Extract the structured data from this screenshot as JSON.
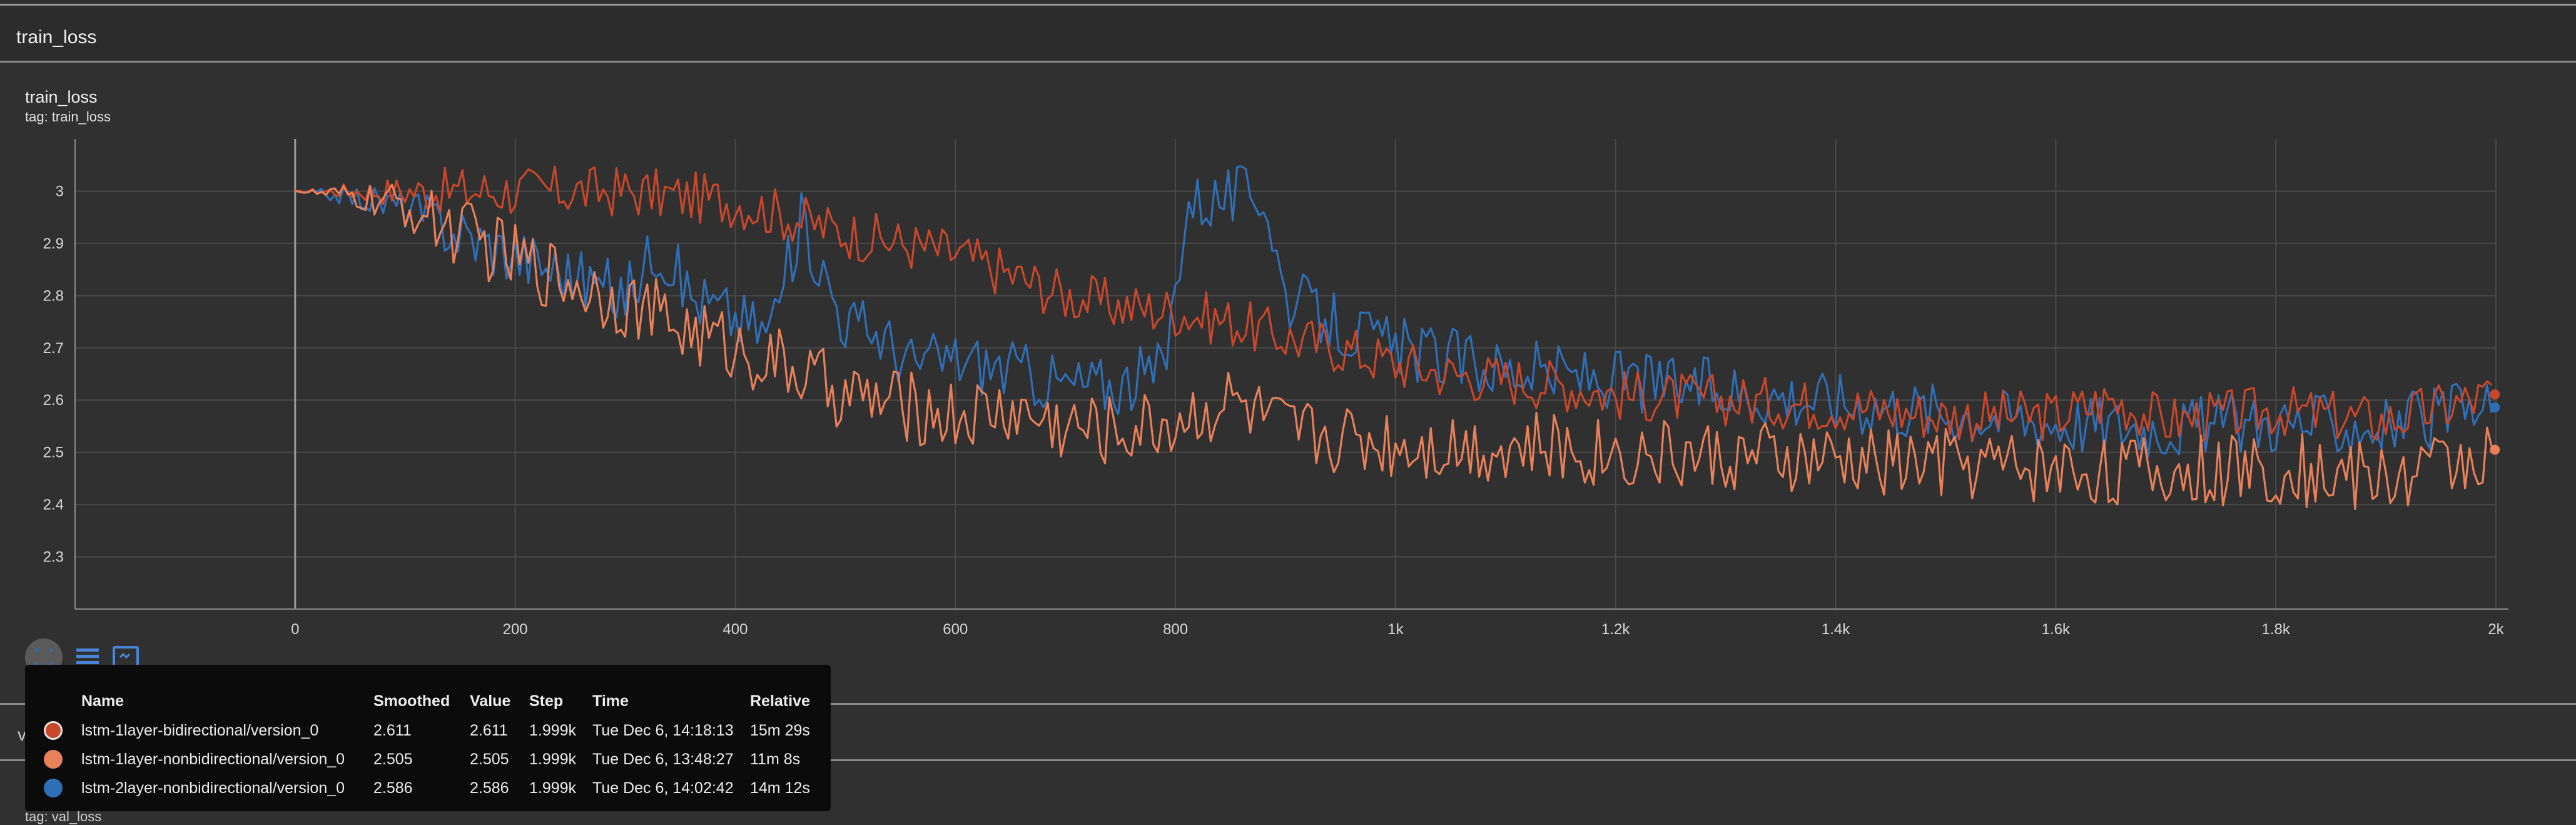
{
  "section": {
    "title": "train_loss"
  },
  "card": {
    "title": "train_loss",
    "tag": "tag: train_loss"
  },
  "tooltip": {
    "headers": {
      "name": "Name",
      "smoothed": "Smoothed",
      "value": "Value",
      "step": "Step",
      "time": "Time",
      "relative": "Relative"
    },
    "rows": [
      {
        "name": "lstm-1layer-bidirectional/version_0",
        "smoothed": "2.611",
        "value": "2.611",
        "step": "1.999k",
        "time": "Tue Dec 6, 14:18:13",
        "relative": "15m 29s",
        "color": "#c9472b"
      },
      {
        "name": "lstm-1layer-nonbidirectional/version_0",
        "smoothed": "2.505",
        "value": "2.505",
        "step": "1.999k",
        "time": "Tue Dec 6, 13:48:27",
        "relative": "11m 8s",
        "color": "#e8805a"
      },
      {
        "name": "lstm-2layer-nonbidirectional/version_0",
        "smoothed": "2.586",
        "value": "2.586",
        "step": "1.999k",
        "time": "Tue Dec 6, 14:02:42",
        "relative": "14m 12s",
        "color": "#2f6fb8"
      }
    ]
  },
  "val_section": {
    "title": "val_loss",
    "subtitle": "val_loss",
    "tag": "tag: val_loss"
  },
  "chart_data": {
    "type": "line",
    "title": "train_loss",
    "xlim": [
      -200,
      2000
    ],
    "ylim": [
      2.2,
      3.1
    ],
    "x_ticks": [
      0,
      200,
      400,
      600,
      800,
      1000,
      1200,
      1400,
      1600,
      1800,
      2000
    ],
    "x_tick_labels": [
      "0",
      "200",
      "400",
      "600",
      "800",
      "1k",
      "1.2k",
      "1.4k",
      "1.6k",
      "1.8k",
      "2k"
    ],
    "y_ticks": [
      2.3,
      2.4,
      2.5,
      2.6,
      2.7,
      2.8,
      2.9,
      3
    ],
    "y_tick_labels": [
      "2.3",
      "2.4",
      "2.5",
      "2.6",
      "2.7",
      "2.8",
      "2.9",
      "3"
    ],
    "grid": true,
    "series": [
      {
        "name": "lstm-1layer-bidirectional/version_0",
        "color": "#c9472b",
        "x": [
          0,
          100,
          200,
          300,
          350,
          400,
          450,
          500,
          550,
          600,
          650,
          700,
          750,
          800,
          850,
          900,
          950,
          1000,
          1050,
          1100,
          1150,
          1200,
          1300,
          1400,
          1500,
          1600,
          1650,
          1700,
          1800,
          1900,
          1999
        ],
        "y": [
          3.0,
          3.0,
          3.0,
          3.0,
          2.99,
          2.98,
          2.95,
          2.92,
          2.9,
          2.88,
          2.84,
          2.8,
          2.78,
          2.77,
          2.75,
          2.72,
          2.7,
          2.67,
          2.65,
          2.64,
          2.63,
          2.61,
          2.6,
          2.59,
          2.57,
          2.57,
          2.6,
          2.56,
          2.58,
          2.56,
          2.611
        ]
      },
      {
        "name": "lstm-1layer-nonbidirectional/version_0",
        "color": "#e8805a",
        "x": [
          0,
          50,
          100,
          150,
          200,
          250,
          300,
          350,
          400,
          450,
          500,
          550,
          600,
          650,
          700,
          750,
          800,
          850,
          900,
          1000,
          1100,
          1200,
          1300,
          1400,
          1500,
          1600,
          1700,
          1800,
          1900,
          1999
        ],
        "y": [
          3.0,
          2.99,
          2.97,
          2.92,
          2.87,
          2.83,
          2.79,
          2.74,
          2.7,
          2.66,
          2.61,
          2.59,
          2.57,
          2.58,
          2.55,
          2.54,
          2.56,
          2.6,
          2.54,
          2.52,
          2.51,
          2.5,
          2.49,
          2.48,
          2.48,
          2.47,
          2.46,
          2.47,
          2.45,
          2.505
        ]
      },
      {
        "name": "lstm-2layer-nonbidirectional/version_0",
        "color": "#2f6fb8",
        "x": [
          0,
          50,
          100,
          150,
          200,
          250,
          300,
          330,
          360,
          400,
          430,
          460,
          500,
          530,
          560,
          600,
          650,
          700,
          750,
          790,
          810,
          850,
          880,
          900,
          950,
          1000,
          1100,
          1200,
          1300,
          1400,
          1500,
          1600,
          1700,
          1800,
          1900,
          1999
        ],
        "y": [
          3.0,
          2.99,
          2.97,
          2.92,
          2.88,
          2.84,
          2.8,
          2.9,
          2.8,
          2.76,
          2.73,
          2.94,
          2.75,
          2.73,
          2.67,
          2.68,
          2.66,
          2.63,
          2.63,
          2.66,
          2.98,
          2.99,
          3.0,
          2.8,
          2.74,
          2.7,
          2.66,
          2.64,
          2.62,
          2.6,
          2.58,
          2.56,
          2.55,
          2.56,
          2.55,
          2.586
        ]
      }
    ]
  }
}
